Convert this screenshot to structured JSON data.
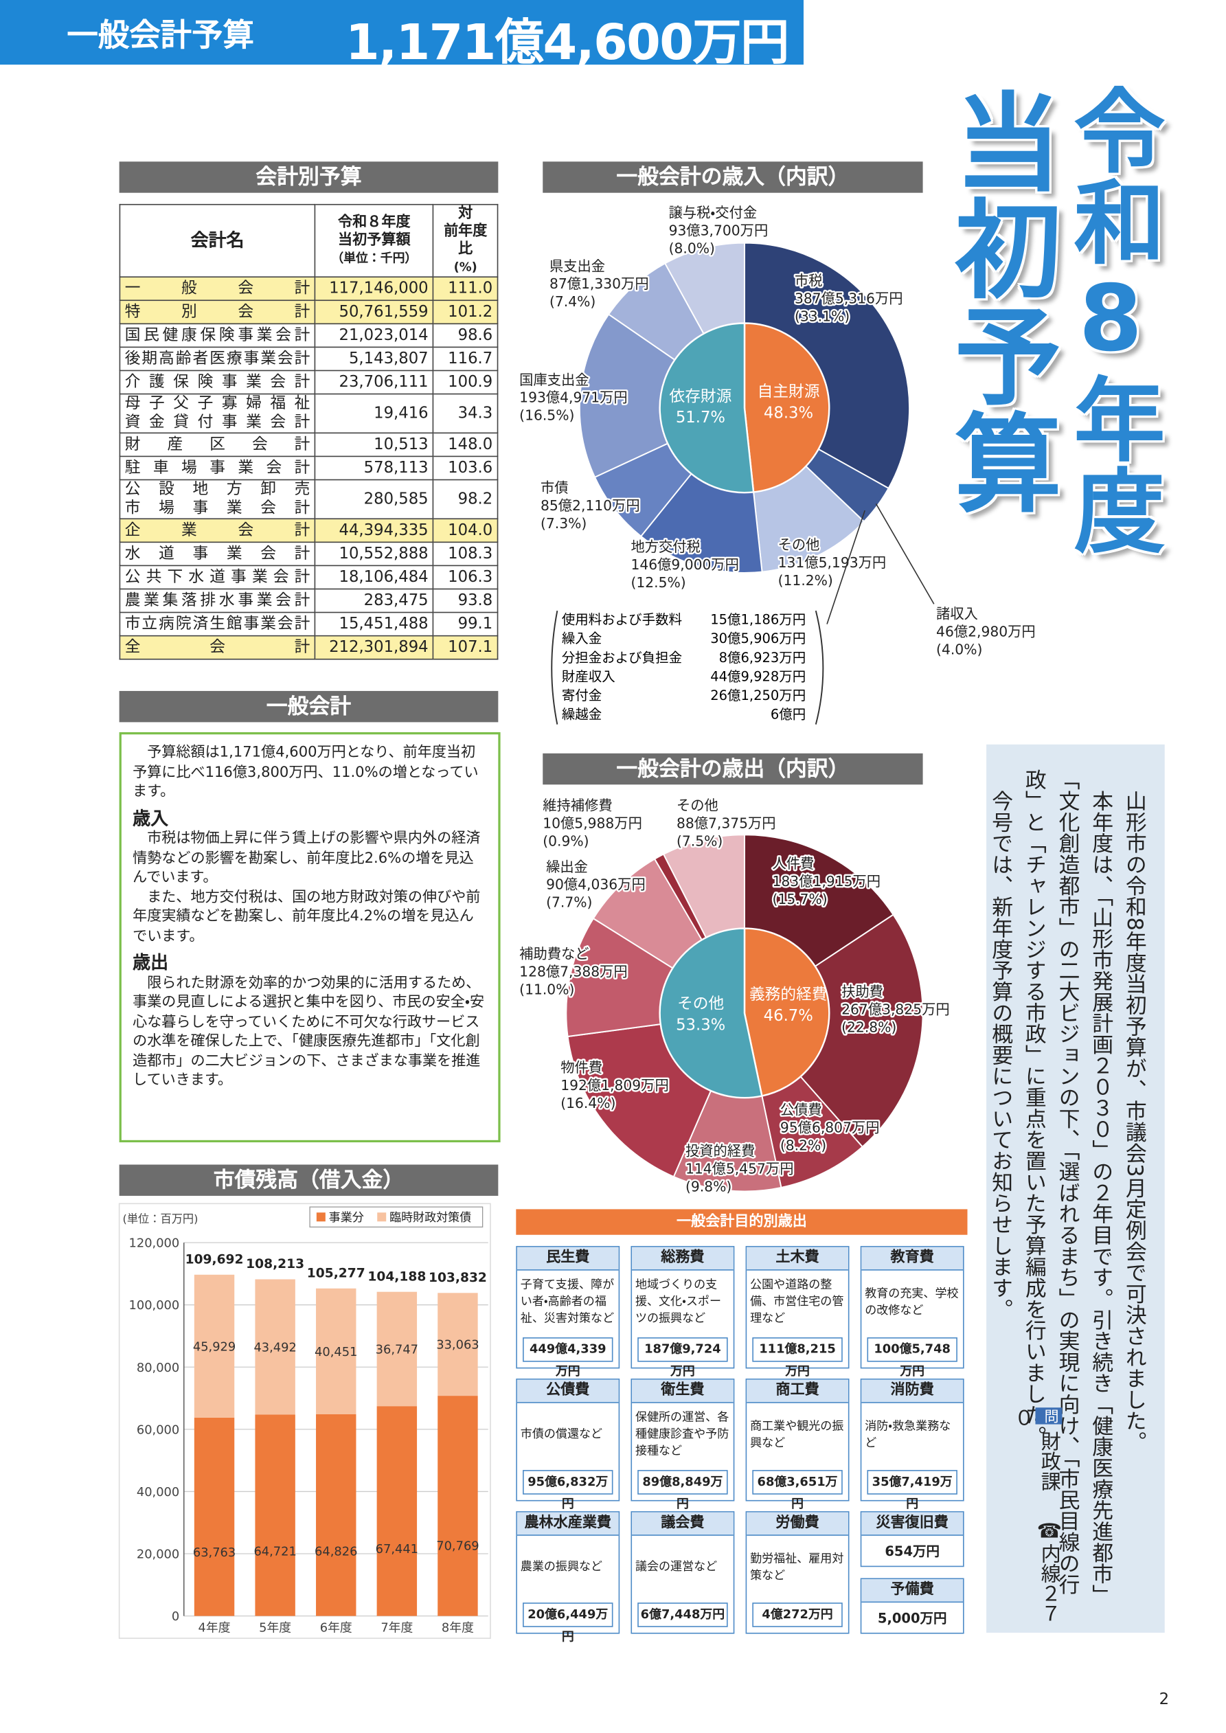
{
  "header": {
    "title": "一般会計予算",
    "amount": "1,171億4,600万円"
  },
  "big_title": {
    "line1": "令和8年度",
    "line2": "当初予算"
  },
  "account_table": {
    "heading": "会計別予算",
    "columns": [
      "会計名",
      [
        "令和８年度",
        "当初予算額",
        "（単位：千円）"
      ],
      [
        "対",
        "前年度比",
        "(%)"
      ]
    ],
    "rows": [
      {
        "name": "一般会計",
        "amount": "117,146,000",
        "ratio": "111.0"
      },
      {
        "name": "特別会計",
        "amount": "50,761,559",
        "ratio": "101.2"
      },
      {
        "name": "国民健康保険事業会計",
        "amount": "21,023,014",
        "ratio": "98.6"
      },
      {
        "name": "後期高齢者医療事業会計",
        "amount": "5,143,807",
        "ratio": "116.7"
      },
      {
        "name": "介護保険事業会計",
        "amount": "23,706,111",
        "ratio": "100.9"
      },
      {
        "name": [
          "母子父子寡婦福祉",
          "資金貸付事業会計"
        ],
        "amount": "19,416",
        "ratio": "34.3"
      },
      {
        "name": "財産区会計",
        "amount": "10,513",
        "ratio": "148.0"
      },
      {
        "name": "駐車場事業会計",
        "amount": "578,113",
        "ratio": "103.6"
      },
      {
        "name": [
          "公設地方卸売",
          "市場事業会計"
        ],
        "amount": "280,585",
        "ratio": "98.2"
      },
      {
        "name": "企業会計",
        "amount": "44,394,335",
        "ratio": "104.0"
      },
      {
        "name": "水道事業会計",
        "amount": "10,552,888",
        "ratio": "108.3"
      },
      {
        "name": "公共下水道事業会計",
        "amount": "18,106,484",
        "ratio": "106.3"
      },
      {
        "name": "農業集落排水事業会計",
        "amount": "283,475",
        "ratio": "93.8"
      },
      {
        "name": "市立病院済生館事業会計",
        "amount": "15,451,488",
        "ratio": "99.1"
      },
      {
        "name": "全会計",
        "amount": "212,301,894",
        "ratio": "107.1"
      }
    ]
  },
  "general": {
    "heading": "一般会計",
    "intro": "予算総額は1,171億4,600万円となり、前年度当初予算に比べ116億3,800万円、11.0%の増となっています。",
    "revenue_heading": "歳入",
    "revenue_paragraphs": [
      "市税は物価上昇に伴う賃上げの影響や県内外の経済情勢などの影響を勘案し、前年度比2.6%の増を見込んでいます。",
      "また、地方交付税は、国の地方財政対策の伸びや前年度実績などを勘案し、前年度比4.2%の増を見込んでいます。"
    ],
    "expenditure_heading": "歳出",
    "expenditure_paragraphs": [
      "限られた財源を効率的かつ効果的に活用するため、事業の見直しによる選択と集中を図り、市民の安全・安心な暮らしを守っていくために不可欠な行政サービスの水準を確保した上で、「健康医療先進都市」「文化創造都市」の二大ビジョンの下、さまざまな事業を推進していきます。"
    ]
  },
  "chart_data": [
    {
      "type": "pie",
      "title": "一般会計の歳入（内訳）",
      "categories": [
        "市税",
        "諸収入",
        "その他",
        "地方交付税",
        "市債",
        "国庫支出金",
        "県支出金",
        "譲与税・交付金"
      ],
      "amounts": [
        "387億5,316万円",
        "46億2,980万円",
        "131億5,193万円",
        "146億9,000万円",
        "85億2,110万円",
        "193億4,971万円",
        "87億1,330万円",
        "93億3,700万円"
      ],
      "values": [
        33.1,
        4.0,
        11.2,
        12.5,
        7.3,
        16.5,
        7.4,
        8.0
      ],
      "value_labels": [
        "(33.1%)",
        "(4.0%)",
        "(11.2%)",
        "(12.5%)",
        "(7.3%)",
        "(16.5%)",
        "(7.4%)",
        "(8.0%)"
      ],
      "colors": [
        "#2e4277",
        "#3f5b98",
        "#b7c5e5",
        "#4c6bb1",
        "#6783c2",
        "#8499cc",
        "#a3b2da",
        "#c4cce6"
      ],
      "inner": {
        "categories": [
          "自主財源",
          "依存財源"
        ],
        "values": [
          48.3,
          51.7
        ],
        "value_labels": [
          "48.3%",
          "51.7%"
        ],
        "colors": [
          "#ec7a3c",
          "#4ea4b6"
        ]
      },
      "breakdown": {
        "items": [
          "使用料および手数料",
          "繰入金",
          "分担金および負担金",
          "財産収入",
          "寄付金",
          "繰越金"
        ],
        "amounts": [
          "15億1,186万円",
          "30億5,906万円",
          "8億6,923万円",
          "44億9,928万円",
          "26億1,250万円",
          "6億円"
        ]
      }
    },
    {
      "type": "pie",
      "title": "一般会計の歳出（内訳）",
      "categories": [
        "人件費",
        "扶助費",
        "公債費",
        "投資的経費",
        "物件費",
        "補助費など",
        "繰出金",
        "維持補修費",
        "その他"
      ],
      "amounts": [
        "183億1,915万円",
        "267億3,825万円",
        "95億6,807万円",
        "114億5,457万円",
        "192億1,809万円",
        "128億7,388万円",
        "90億4,036万円",
        "10億5,988万円",
        "88億7,375万円"
      ],
      "values": [
        15.7,
        22.8,
        8.2,
        9.8,
        16.4,
        11.0,
        7.7,
        0.9,
        7.5
      ],
      "value_labels": [
        "(15.7%)",
        "(22.8%)",
        "(8.2%)",
        "(9.8%)",
        "(16.4%)",
        "(11.0%)",
        "(7.7%)",
        "(0.9%)",
        "(7.5%)"
      ],
      "colors": [
        "#6b1e2a",
        "#8a2b39",
        "#a63a4a",
        "#c9707c",
        "#ad3a4c",
        "#c25b6b",
        "#d98b96",
        "#9c2d3b",
        "#e8b9c0"
      ],
      "inner": {
        "categories": [
          "義務的経費",
          "その他"
        ],
        "values": [
          46.7,
          53.3
        ],
        "value_labels": [
          "46.7%",
          "53.3%"
        ],
        "colors": [
          "#ec7a3c",
          "#4ea4b6"
        ]
      }
    },
    {
      "type": "stacked-bar",
      "title": "市債残高（借入金）",
      "unit": "(単位：百万円)",
      "categories": [
        "4年度",
        "5年度",
        "6年度",
        "7年度",
        "8年度"
      ],
      "series": [
        {
          "name": "事業分",
          "color": "#ee7b3b",
          "values": [
            63763,
            64721,
            64826,
            67441,
            70769
          ],
          "value_labels": [
            "63,763",
            "64,721",
            "64,826",
            "67,441",
            "70,769"
          ]
        },
        {
          "name": "臨時財政対策債",
          "color": "#f7c2a0",
          "values": [
            45929,
            43492,
            40451,
            36747,
            33063
          ],
          "value_labels": [
            "45,929",
            "43,492",
            "40,451",
            "36,747",
            "33,063"
          ]
        }
      ],
      "totals": [
        109692,
        108213,
        105277,
        104188,
        103832
      ],
      "total_labels": [
        "109,692",
        "108,213",
        "105,277",
        "104,188",
        "103,832"
      ],
      "ylim": [
        0,
        120000
      ],
      "yticks": [
        0,
        {
          "value": 20000,
          "label": "20,000"
        },
        {
          "value": 40000,
          "label": "40,000"
        },
        {
          "value": 60000,
          "label": "60,000"
        },
        {
          "value": 80000,
          "label": "80,000"
        },
        {
          "value": 100000,
          "label": "100,000"
        },
        {
          "value": 120000,
          "label": "120,000"
        }
      ],
      "grid": true,
      "legend": "top-right"
    }
  ],
  "purpose": {
    "heading": "一般会計目的別歳出",
    "cards": [
      {
        "name": "民生費",
        "desc": "子育て支援、障がい者・高齢者の福祉、災害対策など",
        "amount": "449億4,339万円"
      },
      {
        "name": "総務費",
        "desc": "地域づくりの支援、文化・スポーツの振興など",
        "amount": "187億9,724万円"
      },
      {
        "name": "土木費",
        "desc": "公園や道路の整備、市営住宅の管理など",
        "amount": "111億8,215万円"
      },
      {
        "name": "教育費",
        "desc": "教育の充実、学校の改修など",
        "amount": "100億5,748万円"
      },
      {
        "name": "公債費",
        "desc": "市債の償還など",
        "amount": "95億6,832万円"
      },
      {
        "name": "衛生費",
        "desc": "保健所の運営、各種健康診査や予防接種など",
        "amount": "89億8,849万円"
      },
      {
        "name": "商工費",
        "desc": "商工業や観光の振興など",
        "amount": "68億3,651万円"
      },
      {
        "name": "消防費",
        "desc": "消防・救急業務など",
        "amount": "35億7,419万円"
      },
      {
        "name": "農林水産業費",
        "desc": "農業の振興など",
        "amount": "20億6,449万円"
      },
      {
        "name": "議会費",
        "desc": "議会の運営など",
        "amount": "6億7,448万円"
      },
      {
        "name": "労働費",
        "desc": "勤労福祉、雇用対策など",
        "amount": "4億272万円"
      },
      {
        "name": "災害復旧費",
        "amount": "654万円"
      },
      {
        "name": "予備費",
        "amount": "5,000万円"
      }
    ]
  },
  "notice": {
    "paragraphs": [
      "山形市の令和8年度当初予算が、市議会3月定例会で可決されました。",
      "本年度は、「山形市発展計画２０３０」の２年目です。引き続き「健康医療先進都市」「文化創造都市」の二大ビジョンの下、「選ばれるまち」の実現に向け、「市民目線の行政」と「チャレンジする市政」に重点を置いた予算編成を行いました。",
      "今号では、新年度予算の概要についてお知らせします。"
    ],
    "contact_mark": "問",
    "contact_dept": "財政課",
    "contact_tel": "☎内線２７０"
  },
  "page_number": "2"
}
